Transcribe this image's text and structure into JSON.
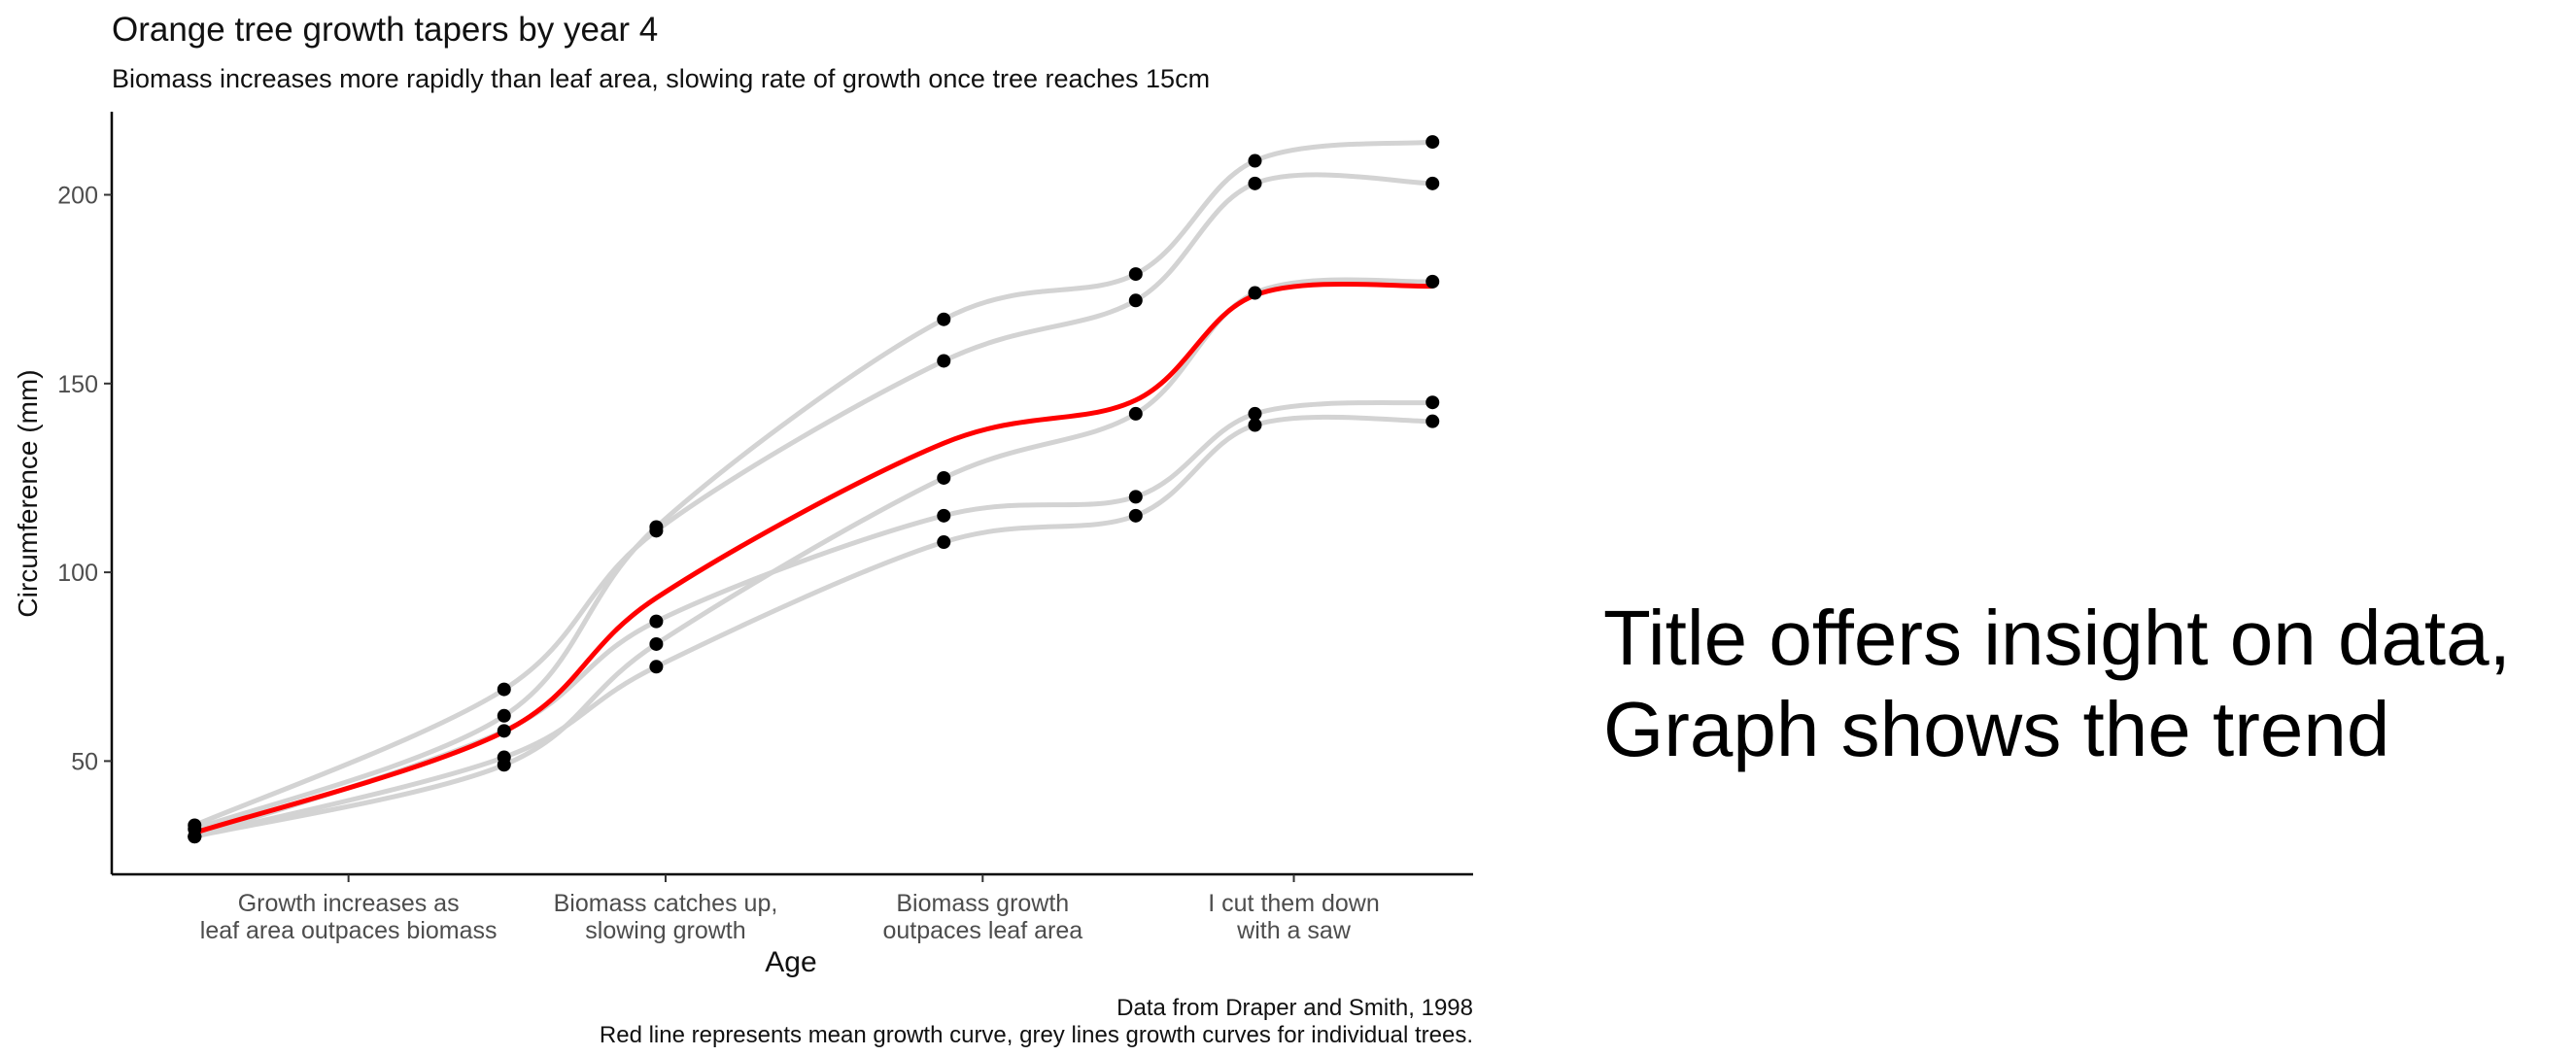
{
  "chart_data": {
    "type": "line",
    "title": "Orange tree growth tapers by year 4",
    "subtitle": "Biomass increases more rapidly than leaf area, slowing rate of growth once tree reaches 15cm",
    "xlabel": "Age",
    "ylabel": "Circumference (mm)",
    "x": [
      118,
      484,
      664,
      1004,
      1231,
      1372,
      1582
    ],
    "xlim": [
      20,
      1630
    ],
    "ylim": [
      20,
      222
    ],
    "y_ticks": [
      50,
      100,
      150,
      200
    ],
    "x_ticks": [
      {
        "x": 300,
        "lines": [
          "Growth increases as",
          "leaf area outpaces biomass"
        ]
      },
      {
        "x": 675,
        "lines": [
          "Biomass catches up,",
          "slowing growth"
        ]
      },
      {
        "x": 1050,
        "lines": [
          "Biomass growth",
          "outpaces leaf area"
        ]
      },
      {
        "x": 1418,
        "lines": [
          "I cut them down",
          "with a saw"
        ]
      }
    ],
    "grid": false,
    "series": [
      {
        "values": [
          30,
          58,
          87,
          115,
          120,
          142,
          145
        ],
        "color": "#d3d3d3"
      },
      {
        "values": [
          33,
          69,
          111,
          156,
          172,
          203,
          203
        ],
        "color": "#d3d3d3"
      },
      {
        "values": [
          30,
          51,
          75,
          108,
          115,
          139,
          140
        ],
        "color": "#d3d3d3"
      },
      {
        "values": [
          32,
          62,
          112,
          167,
          179,
          209,
          214
        ],
        "color": "#d3d3d3"
      },
      {
        "values": [
          30,
          49,
          81,
          125,
          142,
          174,
          177
        ],
        "color": "#d3d3d3"
      },
      {
        "values": [
          31,
          57.8,
          93.2,
          134.2,
          145.6,
          173.4,
          175.8
        ],
        "color": "#ff0000"
      }
    ],
    "points": [
      [
        118,
        30
      ],
      [
        118,
        33
      ],
      [
        118,
        30
      ],
      [
        118,
        32
      ],
      [
        118,
        30
      ],
      [
        484,
        58
      ],
      [
        484,
        69
      ],
      [
        484,
        51
      ],
      [
        484,
        62
      ],
      [
        484,
        49
      ],
      [
        664,
        87
      ],
      [
        664,
        111
      ],
      [
        664,
        75
      ],
      [
        664,
        112
      ],
      [
        664,
        81
      ],
      [
        1004,
        115
      ],
      [
        1004,
        156
      ],
      [
        1004,
        108
      ],
      [
        1004,
        167
      ],
      [
        1004,
        125
      ],
      [
        1231,
        120
      ],
      [
        1231,
        172
      ],
      [
        1231,
        115
      ],
      [
        1231,
        179
      ],
      [
        1231,
        142
      ],
      [
        1372,
        142
      ],
      [
        1372,
        203
      ],
      [
        1372,
        139
      ],
      [
        1372,
        209
      ],
      [
        1372,
        174
      ],
      [
        1582,
        145
      ],
      [
        1582,
        203
      ],
      [
        1582,
        140
      ],
      [
        1582,
        214
      ],
      [
        1582,
        177
      ]
    ],
    "caption": [
      "Data from Draper and Smith, 1998",
      "Red line represents mean growth curve, grey lines growth curves for individual trees."
    ]
  },
  "side_note": {
    "line1": "Title offers insight on data,",
    "line2": "Graph shows the trend"
  }
}
